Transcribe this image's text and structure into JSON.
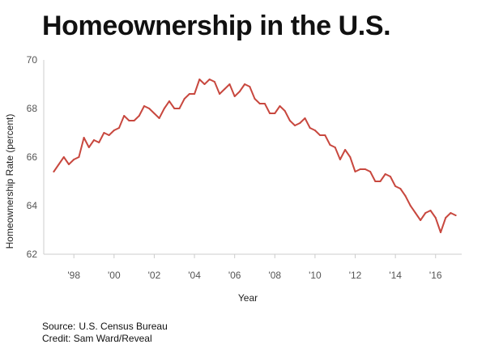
{
  "page": {
    "title": "Homeownership in the U.S.",
    "source_label": "Source:",
    "source_text": "U.S. Census Bureau",
    "credit_label": "Credit:",
    "credit_text": "Sam Ward/Reveal"
  },
  "colors": {
    "line": "#c8483f",
    "axis": "#cccccc",
    "text": "#111111",
    "tick_text": "#555555"
  },
  "chart_data": {
    "type": "line",
    "title": "Homeownership in the U.S.",
    "xlabel": "Year",
    "ylabel": "Homeownership Rate (percent)",
    "xlim": [
      1996.5,
      2017.3
    ],
    "ylim": [
      62,
      70
    ],
    "grid": false,
    "yticks": [
      62,
      64,
      66,
      68,
      70
    ],
    "ytick_labels": [
      "62",
      "64",
      "66",
      "68",
      "70"
    ],
    "xticks": [
      1998,
      2000,
      2002,
      2004,
      2006,
      2008,
      2010,
      2012,
      2014,
      2016
    ],
    "xtick_labels": [
      "'98",
      "'00",
      "'02",
      "'04",
      "'06",
      "'08",
      "'10",
      "'12",
      "'14",
      "'16"
    ],
    "series": [
      {
        "name": "Homeownership Rate",
        "x": [
          1997.0,
          1997.25,
          1997.5,
          1997.75,
          1998.0,
          1998.25,
          1998.5,
          1998.75,
          1999.0,
          1999.25,
          1999.5,
          1999.75,
          2000.0,
          2000.25,
          2000.5,
          2000.75,
          2001.0,
          2001.25,
          2001.5,
          2001.75,
          2002.0,
          2002.25,
          2002.5,
          2002.75,
          2003.0,
          2003.25,
          2003.5,
          2003.75,
          2004.0,
          2004.25,
          2004.5,
          2004.75,
          2005.0,
          2005.25,
          2005.5,
          2005.75,
          2006.0,
          2006.25,
          2006.5,
          2006.75,
          2007.0,
          2007.25,
          2007.5,
          2007.75,
          2008.0,
          2008.25,
          2008.5,
          2008.75,
          2009.0,
          2009.25,
          2009.5,
          2009.75,
          2010.0,
          2010.25,
          2010.5,
          2010.75,
          2011.0,
          2011.25,
          2011.5,
          2011.75,
          2012.0,
          2012.25,
          2012.5,
          2012.75,
          2013.0,
          2013.25,
          2013.5,
          2013.75,
          2014.0,
          2014.25,
          2014.5,
          2014.75,
          2015.0,
          2015.25,
          2015.5,
          2015.75,
          2016.0,
          2016.25,
          2016.5,
          2016.75,
          2017.0
        ],
        "y": [
          65.4,
          65.7,
          66.0,
          65.7,
          65.9,
          66.0,
          66.8,
          66.4,
          66.7,
          66.6,
          67.0,
          66.9,
          67.1,
          67.2,
          67.7,
          67.5,
          67.5,
          67.7,
          68.1,
          68.0,
          67.8,
          67.6,
          68.0,
          68.3,
          68.0,
          68.0,
          68.4,
          68.6,
          68.6,
          69.2,
          69.0,
          69.2,
          69.1,
          68.6,
          68.8,
          69.0,
          68.5,
          68.7,
          69.0,
          68.9,
          68.4,
          68.2,
          68.2,
          67.8,
          67.8,
          68.1,
          67.9,
          67.5,
          67.3,
          67.4,
          67.6,
          67.2,
          67.1,
          66.9,
          66.9,
          66.5,
          66.4,
          65.9,
          66.3,
          66.0,
          65.4,
          65.5,
          65.5,
          65.4,
          65.0,
          65.0,
          65.3,
          65.2,
          64.8,
          64.7,
          64.4,
          64.0,
          63.7,
          63.4,
          63.7,
          63.8,
          63.5,
          62.9,
          63.5,
          63.7,
          63.6
        ]
      }
    ]
  }
}
